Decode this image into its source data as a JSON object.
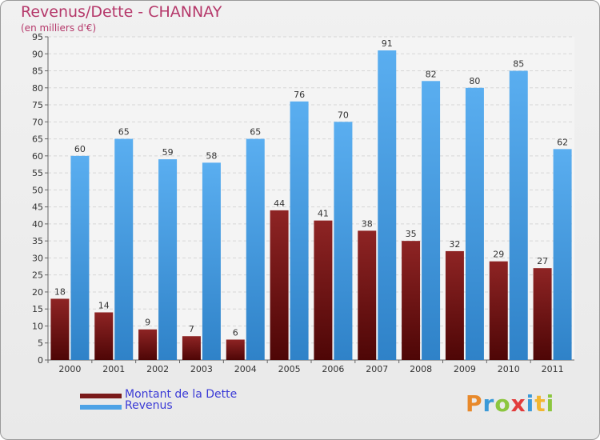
{
  "chart_data": {
    "type": "bar",
    "title": "Revenus/Dette - CHANNAY",
    "subtitle": "(en milliers d'€)",
    "categories": [
      "2000",
      "2001",
      "2002",
      "2003",
      "2004",
      "2005",
      "2006",
      "2007",
      "2008",
      "2009",
      "2010",
      "2011"
    ],
    "series": [
      {
        "name": "Montant de la Dette",
        "color": "#7a1a1a",
        "values": [
          18,
          14,
          9,
          7,
          6,
          44,
          41,
          38,
          35,
          32,
          29,
          27
        ]
      },
      {
        "name": "Revenus",
        "color": "#4ea3e6",
        "values": [
          60,
          65,
          59,
          58,
          65,
          76,
          70,
          91,
          82,
          80,
          85,
          62
        ]
      }
    ],
    "ylim": [
      0,
      95
    ],
    "yticks": [
      0,
      5,
      10,
      15,
      20,
      25,
      30,
      35,
      40,
      45,
      50,
      55,
      60,
      65,
      70,
      75,
      80,
      85,
      90,
      95
    ],
    "grid": true,
    "xlabel": "",
    "ylabel": "",
    "legend_position": "bottom-left"
  },
  "branding": {
    "logo_letters": [
      "P",
      "r",
      "o",
      "x",
      "i",
      "t",
      "i"
    ]
  }
}
